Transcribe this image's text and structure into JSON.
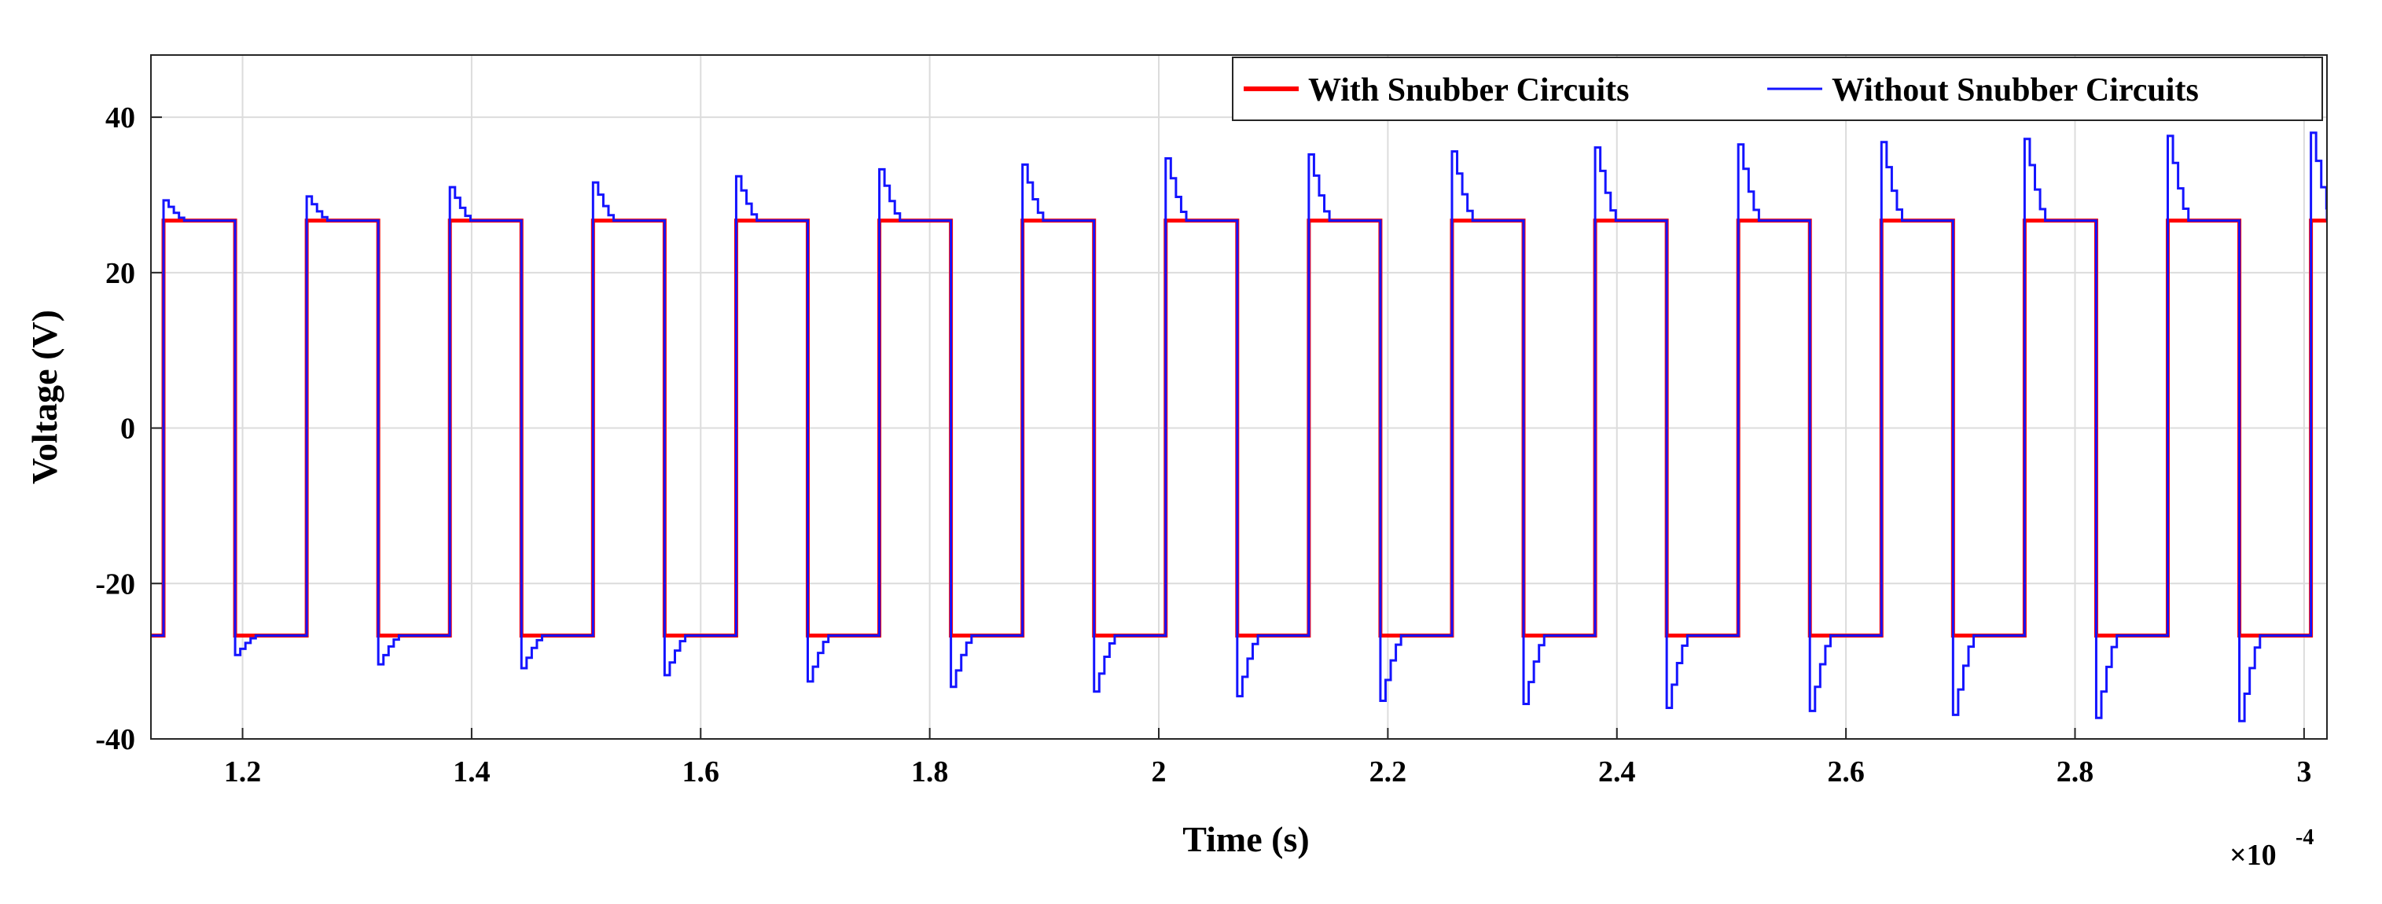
{
  "chart_data": {
    "type": "line",
    "title": "",
    "xlabel": "Time (s)",
    "ylabel": "Voltage (V)",
    "x_multiplier_base": "×10",
    "x_multiplier_exp": "-4",
    "xlim": [
      1.12,
      3.02
    ],
    "ylim": [
      -40,
      48
    ],
    "x_ticks": [
      1.2,
      1.4,
      1.6,
      1.8,
      2,
      2.2,
      2.4,
      2.6,
      2.8,
      3
    ],
    "x_tick_labels": [
      "1.2",
      "1.4",
      "1.6",
      "1.8",
      "2",
      "2.2",
      "2.4",
      "2.6",
      "2.8",
      "3"
    ],
    "y_ticks": [
      -40,
      -20,
      0,
      20,
      40
    ],
    "y_tick_labels": [
      "-40",
      "-20",
      "0",
      "20",
      "40"
    ],
    "grid": true,
    "legend_position": "top-right",
    "waveform": {
      "amplitude": 26.7,
      "period": 0.125,
      "first_rise": 1.131,
      "duty_high": 0.0625,
      "series_high_start": [
        1.131,
        1.256,
        1.381,
        1.506,
        1.631,
        1.756,
        1.881,
        2.006,
        2.131,
        2.256,
        2.381,
        2.506,
        2.631,
        2.756,
        2.881,
        3.006
      ],
      "overshoot_peaks_positive": [
        29.3,
        29.8,
        31.0,
        31.6,
        32.4,
        33.3,
        33.9,
        34.7,
        35.2,
        35.6,
        36.1,
        36.5,
        36.8,
        37.2,
        37.6,
        38.0
      ],
      "overshoot_peaks_negative": [
        -29.2,
        -30.4,
        -30.9,
        -31.8,
        -32.6,
        -33.3,
        -33.9,
        -34.5,
        -35.1,
        -35.5,
        -36.0,
        -36.4,
        -36.9,
        -37.3,
        -37.7
      ]
    },
    "series": [
      {
        "name": "With Snubber Circuits",
        "color": "#ff0000",
        "behavior": "clean square wave ±26.7 V"
      },
      {
        "name": "Without Snubber Circuits",
        "color": "#1414ff",
        "behavior": "square wave ±26.7 V with staircase overshoot ringing after each edge"
      }
    ]
  }
}
